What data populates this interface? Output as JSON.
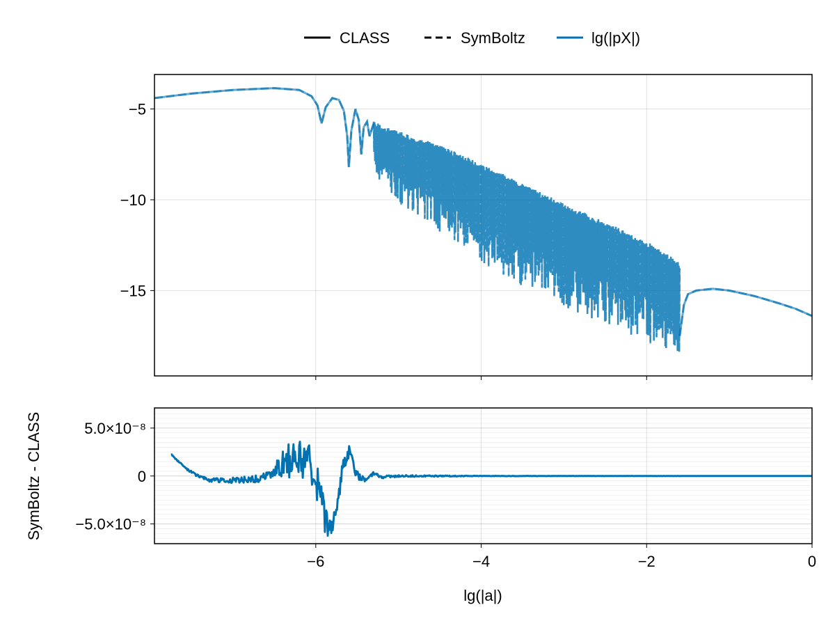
{
  "chart_data": [
    {
      "type": "line",
      "panel": "top",
      "title": "",
      "xlabel": "",
      "ylabel": "",
      "xlim": [
        -7.95,
        0
      ],
      "ylim": [
        -19.7,
        -3.1
      ],
      "grid": true,
      "xticks": [
        -6,
        -4,
        -2,
        0
      ],
      "yticks": [
        -5,
        -10,
        -15
      ],
      "ytick_labels": [
        "−5",
        "−10",
        "−15"
      ],
      "legend": {
        "placement": "top",
        "entries": [
          {
            "label": "CLASS",
            "style": "solid",
            "color": "#000000"
          },
          {
            "label": "SymBoltz",
            "style": "dashed",
            "color": "#000000"
          },
          {
            "label": "lg(|pX|)",
            "style": "solid",
            "color": "#0072b2"
          }
        ]
      },
      "series_color": "#0072b2",
      "smooth_part": {
        "x": [
          -7.95,
          -7.5,
          -7.0,
          -6.5,
          -6.2,
          -6.05,
          -5.98,
          -5.93,
          -5.88,
          -5.8,
          -5.72,
          -5.66,
          -5.62,
          -5.6,
          -5.57,
          -5.52,
          -5.48,
          -5.45,
          -5.42,
          -5.38,
          -5.35,
          -5.3
        ],
        "y": [
          -4.4,
          -4.15,
          -3.95,
          -3.85,
          -3.95,
          -4.3,
          -4.8,
          -5.8,
          -4.9,
          -4.4,
          -4.5,
          -5.1,
          -6.5,
          -8.2,
          -6.2,
          -5.0,
          -5.6,
          -7.5,
          -6.0,
          -5.7,
          -6.5,
          -5.8
        ]
      },
      "oscillating_part": {
        "x": [
          -5.3,
          -5.0,
          -4.5,
          -4.0,
          -3.5,
          -3.0,
          -2.5,
          -2.0,
          -1.8,
          -1.6
        ],
        "upper": [
          -5.7,
          -6.2,
          -7.0,
          -8.0,
          -9.1,
          -10.2,
          -11.2,
          -12.3,
          -12.8,
          -13.5
        ],
        "lower": [
          -8.5,
          -10.2,
          -11.8,
          -13.5,
          -14.8,
          -15.9,
          -16.9,
          -17.8,
          -18.4,
          -19.0
        ]
      },
      "tail_part": {
        "x": [
          -1.6,
          -1.55,
          -1.5,
          -1.4,
          -1.2,
          -1.0,
          -0.7,
          -0.4,
          -0.2,
          0
        ],
        "y": [
          -17.5,
          -15.8,
          -15.2,
          -15.0,
          -14.9,
          -15.0,
          -15.3,
          -15.7,
          -16.0,
          -16.4
        ]
      }
    },
    {
      "type": "line",
      "panel": "bottom",
      "title": "",
      "xlabel": "lg(|a|)",
      "ylabel": "SymBoltz - CLASS",
      "xlim": [
        -7.95,
        0
      ],
      "ylim": [
        -7.06e-08,
        7.1e-08
      ],
      "grid": true,
      "minor_grid": true,
      "xticks": [
        -6,
        -4,
        -2,
        0
      ],
      "xtick_labels": [
        "−6",
        "−4",
        "−2",
        "0"
      ],
      "yticks": [
        5e-08,
        0,
        -5e-08
      ],
      "ytick_labels": [
        "5.0×10⁻⁸",
        "0",
        "−5.0×10⁻⁸"
      ],
      "series_color": "#0072b2",
      "x": [
        -7.75,
        -7.6,
        -7.45,
        -7.3,
        -7.1,
        -6.9,
        -6.7,
        -6.5,
        -6.4,
        -6.3,
        -6.2,
        -6.1,
        -6.02,
        -5.95,
        -5.9,
        -5.85,
        -5.8,
        -5.75,
        -5.7,
        -5.65,
        -5.6,
        -5.55,
        -5.5,
        -5.4,
        -5.3,
        -5.2,
        -5.0,
        -4.5,
        -4.0,
        -3.0,
        -2.0,
        -1.0,
        0
      ],
      "y": [
        2.3e-08,
        1e-08,
        1e-09,
        -4e-09,
        -5e-09,
        -4e-09,
        -3e-09,
        3e-09,
        1e-08,
        1.8e-08,
        2.2e-08,
        1.5e-08,
        5e-09,
        -2e-08,
        -4.5e-08,
        -6e-08,
        -5.5e-08,
        -3.5e-08,
        -5e-09,
        1.5e-08,
        2.5e-08,
        1.2e-08,
        1e-09,
        -4e-09,
        3e-09,
        -1e-09,
        0.0,
        0.0,
        0.0,
        0.0,
        0.0,
        0.0,
        0.0
      ],
      "noise_amplitude": {
        "x": [
          -7.95,
          -6.6,
          -6.4,
          -6.2,
          -6.0,
          -5.9,
          -5.8,
          -5.6,
          -5.4,
          -5.0,
          -4.0,
          0
        ],
        "amp": [
          0.0,
          4e-09,
          1.6e-08,
          2.2e-08,
          1.8e-08,
          2e-08,
          1e-08,
          8e-09,
          2e-09,
          1e-09,
          2e-10,
          0.0
        ]
      }
    }
  ]
}
